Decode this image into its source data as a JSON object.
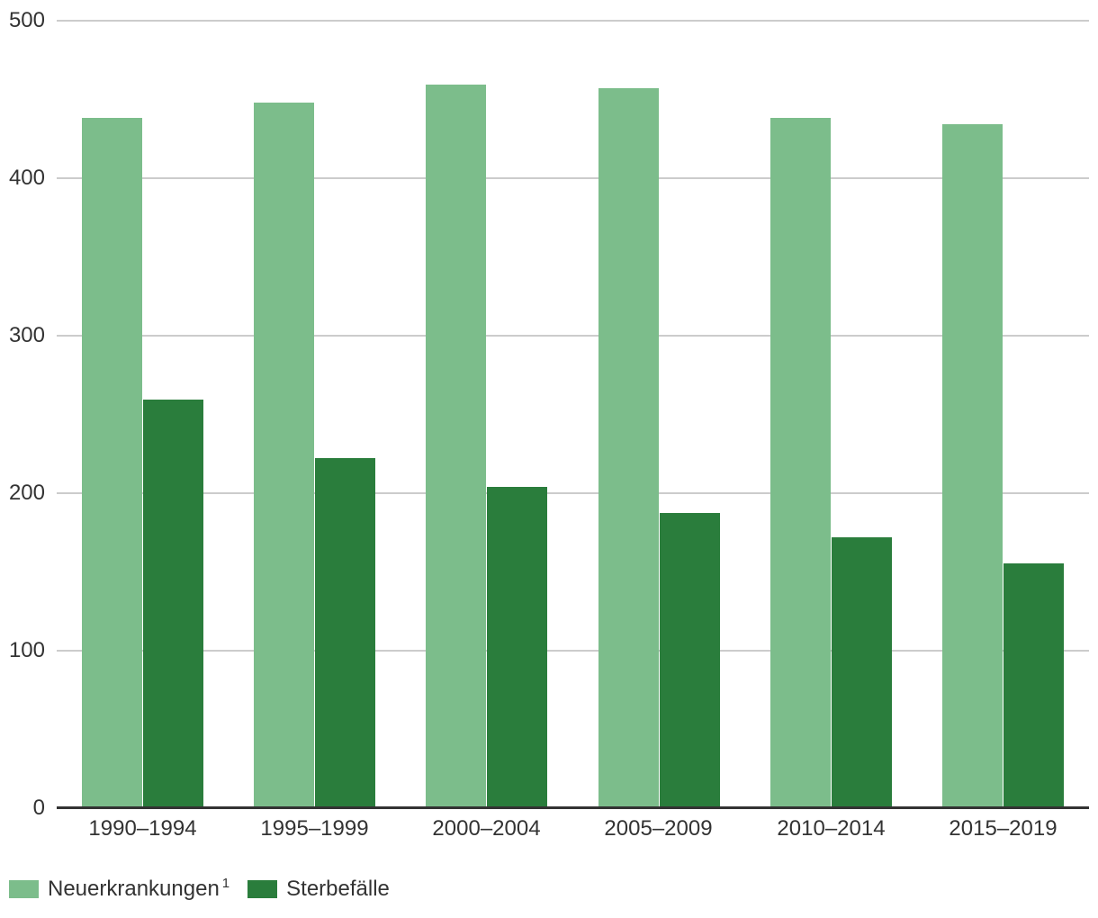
{
  "chart_data": {
    "type": "bar",
    "categories": [
      "1990–1994",
      "1995–1999",
      "2000–2004",
      "2005–2009",
      "2010–2014",
      "2015–2019"
    ],
    "series": [
      {
        "name": "Neuerkrankungen",
        "superscript": "1",
        "color": "#7cbd8b",
        "values": [
          437,
          447,
          458,
          456,
          437,
          433
        ]
      },
      {
        "name": "Sterbefälle",
        "superscript": "",
        "color": "#2a7d3c",
        "values": [
          258,
          221,
          203,
          186,
          171,
          154
        ]
      }
    ],
    "ylim": [
      0,
      500
    ],
    "yticks": [
      0,
      100,
      200,
      300,
      400,
      500
    ],
    "grid": "horizontal",
    "legend_position": "bottom-left"
  },
  "colors": {
    "background": "#ffffff",
    "gridline": "#cccccc",
    "axis_line": "#333333",
    "text": "#333333"
  }
}
